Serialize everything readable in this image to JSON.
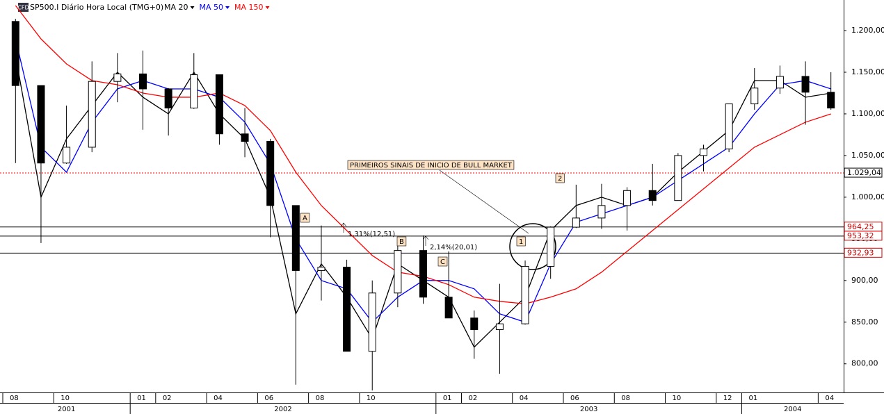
{
  "chart_data": {
    "type": "candlestick",
    "title": "SP500.I Diário Hora Local (TMG+0)",
    "logo": "CFD",
    "x": [
      "2001-08",
      "2001-09",
      "2001-10",
      "2001-11",
      "2001-12",
      "2002-01",
      "2002-02",
      "2002-03",
      "2002-04",
      "2002-05",
      "2002-06",
      "2002-07",
      "2002-08",
      "2002-09",
      "2002-10",
      "2002-11",
      "2002-12",
      "2003-01",
      "2003-02",
      "2003-03",
      "2003-04",
      "2003-05",
      "2003-06",
      "2003-07",
      "2003-08",
      "2003-09",
      "2003-10",
      "2003-11",
      "2003-12",
      "2004-01",
      "2004-02",
      "2004-03",
      "2004-04"
    ],
    "open": [
      1211,
      1134,
      1041,
      1060,
      1139,
      1148,
      1130,
      1107,
      1147,
      1076,
      1067,
      990,
      912,
      916,
      815,
      885,
      936,
      880,
      855,
      841,
      848,
      917,
      964,
      975,
      990,
      1008,
      996,
      1050,
      1058,
      1112,
      1131,
      1145,
      1126
    ],
    "high": [
      1214,
      1134,
      1110,
      1163,
      1173,
      1176,
      1131,
      1173,
      1147,
      1107,
      1070,
      990,
      966,
      925,
      900,
      951,
      954,
      935,
      864,
      896,
      924,
      965,
      1015,
      1016,
      1012,
      1040,
      1053,
      1063,
      1112,
      1155,
      1158,
      1163,
      1150
    ],
    "low": [
      1041,
      945,
      1040,
      1054,
      1114,
      1081,
      1074,
      1106,
      1063,
      1048,
      952,
      775,
      876,
      815,
      768,
      868,
      872,
      855,
      806,
      788,
      847,
      902,
      963,
      962,
      960,
      990,
      996,
      1031,
      1054,
      1105,
      1124,
      1087,
      1105
    ],
    "close": [
      1134,
      1041,
      1060,
      1139,
      1148,
      1130,
      1107,
      1147,
      1076,
      1067,
      990,
      912,
      916,
      815,
      885,
      936,
      880,
      855,
      841,
      848,
      917,
      964,
      975,
      990,
      1008,
      996,
      1050,
      1058,
      1112,
      1131,
      1145,
      1126,
      1107
    ],
    "series": [
      {
        "name": "MA 20",
        "color": "#000000",
        "values": [
          1170,
          1000,
          1070,
          1110,
          1150,
          1120,
          1100,
          1150,
          1100,
          1070,
          1000,
          860,
          920,
          880,
          830,
          920,
          900,
          880,
          820,
          850,
          880,
          960,
          990,
          1000,
          990,
          1000,
          1030,
          1055,
          1080,
          1140,
          1140,
          1120,
          1125
        ]
      },
      {
        "name": "MA 50",
        "color": "#0000ff",
        "values": [
          1190,
          1060,
          1030,
          1090,
          1130,
          1140,
          1130,
          1130,
          1120,
          1090,
          1040,
          950,
          900,
          890,
          850,
          880,
          900,
          900,
          890,
          860,
          850,
          920,
          970,
          980,
          990,
          1000,
          1020,
          1040,
          1060,
          1100,
          1135,
          1140,
          1130
        ]
      },
      {
        "name": "MA 150",
        "color": "#ff0000",
        "values": [
          1230,
          1190,
          1160,
          1140,
          1135,
          1125,
          1120,
          1120,
          1125,
          1110,
          1080,
          1030,
          990,
          960,
          930,
          910,
          905,
          895,
          880,
          875,
          872,
          880,
          890,
          910,
          935,
          960,
          985,
          1010,
          1035,
          1060,
          1075,
          1090,
          1100
        ]
      }
    ],
    "ylim": [
      765.6,
      1236.7
    ],
    "yticks": [
      {
        "value": 800,
        "label": "800,00"
      },
      {
        "value": 850,
        "label": "850,00"
      },
      {
        "value": 900,
        "label": "900,00"
      },
      {
        "value": 950,
        "label": "950,00"
      },
      {
        "value": 1000,
        "label": "1.000,00"
      },
      {
        "value": 1050,
        "label": "1.050,00"
      },
      {
        "value": 1100,
        "label": "1.100,00"
      },
      {
        "value": 1150,
        "label": "1.150,00"
      },
      {
        "value": 1200,
        "label": "1.200,00"
      }
    ],
    "xticks": [
      {
        "value": "2001-08",
        "label": "08"
      },
      {
        "value": "2001-10",
        "label": "10"
      },
      {
        "value": "2002-01",
        "label": "01"
      },
      {
        "value": "2002-02",
        "label": "02"
      },
      {
        "value": "2002-04",
        "label": "04"
      },
      {
        "value": "2002-06",
        "label": "06"
      },
      {
        "value": "2002-08",
        "label": "08"
      },
      {
        "value": "2002-10",
        "label": "10"
      },
      {
        "value": "2003-01",
        "label": "01"
      },
      {
        "value": "2003-02",
        "label": "02"
      },
      {
        "value": "2003-04",
        "label": "04"
      },
      {
        "value": "2003-06",
        "label": "06"
      },
      {
        "value": "2003-08",
        "label": "08"
      },
      {
        "value": "2003-10",
        "label": "10"
      },
      {
        "value": "2003-12",
        "label": "12"
      },
      {
        "value": "2004-01",
        "label": "01"
      },
      {
        "value": "2004-04",
        "label": "04"
      }
    ],
    "years": [
      "2001",
      "2002",
      "2003",
      "2004"
    ],
    "levels": {
      "values": [
        1029.04,
        964.25,
        953.32,
        932.93
      ],
      "value_labels": [
        "1.029,04",
        "964,25",
        "953,32",
        "932,93"
      ],
      "colors": [
        "#ff0000",
        "#000000",
        "#000000",
        "#000000"
      ]
    },
    "annotations": [
      "PRIMEIROS SINAIS DE INICIO DE BULL MARKET",
      "A",
      "B",
      "C",
      "1",
      "2",
      "1,31%(12,51)",
      "2,14%(20,01)"
    ]
  }
}
